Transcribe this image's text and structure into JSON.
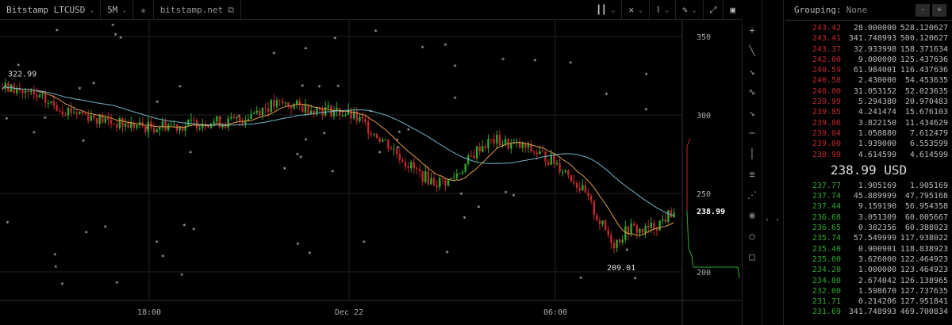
{
  "toolbar": {
    "symbol": "Bitstamp LTCUSD",
    "interval": "5M",
    "source": "bitstamp.net"
  },
  "orderbook": {
    "grouping_label": "Grouping:",
    "grouping_value": "None",
    "minus": "-",
    "plus": "+",
    "last_price": "238.99 USD",
    "asks": [
      [
        "243.42",
        "28.000000",
        "528.120627"
      ],
      [
        "243.41",
        "341.748993",
        "500.120627"
      ],
      [
        "243.37",
        "32.933998",
        "158.371634"
      ],
      [
        "242.00",
        "9.000000",
        "125.437636"
      ],
      [
        "240.59",
        "61.984001",
        "116.437636"
      ],
      [
        "240.58",
        "2.430000",
        "54.453635"
      ],
      [
        "240.00",
        "31.053152",
        "52.023635"
      ],
      [
        "239.99",
        "5.294380",
        "20.970483"
      ],
      [
        "239.85",
        "4.241474",
        "15.676103"
      ],
      [
        "239.06",
        "3.822150",
        "11.434629"
      ],
      [
        "239.04",
        "1.058880",
        "7.612479"
      ],
      [
        "239.00",
        "1.939000",
        "6.553599"
      ],
      [
        "238.99",
        "4.614599",
        "4.614599"
      ]
    ],
    "bids": [
      [
        "237.77",
        "1.905169",
        "1.905169"
      ],
      [
        "237.74",
        "45.889999",
        "47.795168"
      ],
      [
        "237.44",
        "9.159190",
        "56.954358"
      ],
      [
        "236.68",
        "3.051309",
        "60.005667"
      ],
      [
        "236.65",
        "0.382356",
        "60.388023"
      ],
      [
        "235.74",
        "57.549999",
        "117.938022"
      ],
      [
        "235.40",
        "0.900901",
        "118.838923"
      ],
      [
        "235.00",
        "3.626000",
        "122.464923"
      ],
      [
        "234.20",
        "1.000000",
        "123.464923"
      ],
      [
        "234.00",
        "2.674042",
        "126.138965"
      ],
      [
        "232.00",
        "1.598670",
        "127.737635"
      ],
      [
        "231.71",
        "0.214206",
        "127.951841"
      ],
      [
        "231.69",
        "341.748993",
        "469.700834"
      ]
    ]
  },
  "chart_data": {
    "type": "candlestick",
    "y_ticks": [
      200,
      250,
      300,
      350
    ],
    "ylim": [
      188,
      362
    ],
    "x_ticks": [
      "18:00",
      "Dec 22",
      "06:00"
    ],
    "closes": [
      317,
      316,
      312,
      308,
      304,
      302,
      299,
      296,
      294,
      293,
      292,
      294,
      293,
      295,
      296,
      295,
      297,
      303,
      306,
      307,
      305,
      304,
      303,
      301,
      296,
      288,
      280,
      270,
      262,
      257,
      258,
      268,
      280,
      284,
      281,
      279,
      275,
      270,
      262,
      250,
      232,
      218,
      228,
      226,
      231,
      238.99
    ],
    "high_label": "322.99",
    "low_label": "209.01",
    "last_label": "238.99",
    "colors": {
      "up": "#2fa82f",
      "down": "#c0282a",
      "ma_fast": "#e39a4a",
      "ma_slow": "#6fb6c8"
    }
  }
}
